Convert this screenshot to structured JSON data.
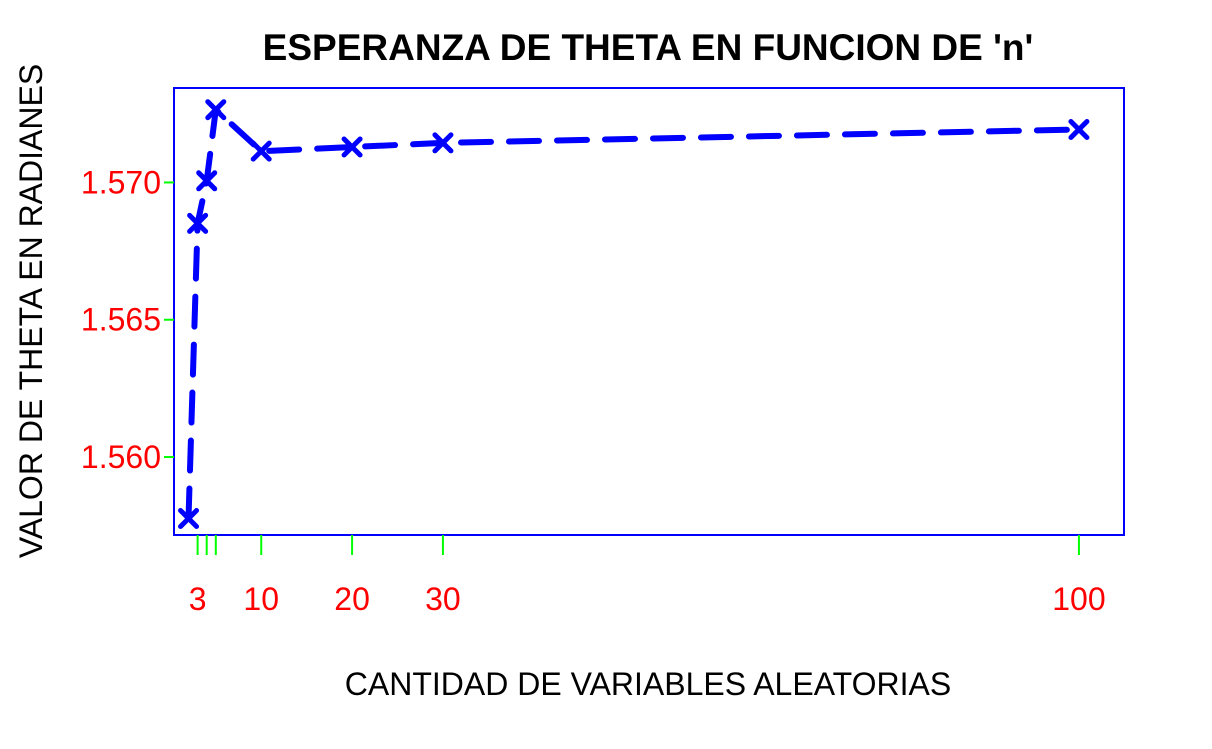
{
  "chart_data": {
    "type": "line",
    "title": "ESPERANZA DE THETA EN FUNCION DE 'n'",
    "xlabel": "CANTIDAD DE VARIABLES ALEATORIAS",
    "ylabel": "VALOR DE THETA EN RADIANES",
    "xlim": [
      0.4,
      104.96
    ],
    "ylim": [
      1.55716,
      1.57344
    ],
    "x_ticks": [
      {
        "value": 3,
        "label": "3"
      },
      {
        "value": 4,
        "label": ""
      },
      {
        "value": 5,
        "label": ""
      },
      {
        "value": 10,
        "label": "10"
      },
      {
        "value": 20,
        "label": "20"
      },
      {
        "value": 30,
        "label": "30"
      },
      {
        "value": 100,
        "label": "100"
      }
    ],
    "y_ticks": [
      {
        "value": 1.56,
        "label": "1.560"
      },
      {
        "value": 1.565,
        "label": "1.565"
      },
      {
        "value": 1.57,
        "label": "1.570"
      }
    ],
    "series": [
      {
        "x": [
          2,
          3,
          4,
          5,
          10,
          20,
          30,
          100
        ],
        "y": [
          1.55776,
          1.56851,
          1.57006,
          1.57265,
          1.57114,
          1.57129,
          1.57144,
          1.57193
        ]
      }
    ],
    "grid": false,
    "colors": {
      "line": "#0000ff",
      "marker": "#0000ff",
      "box": "#0000ff",
      "ticks": "#00ff00",
      "tick_labels": "#ff0000",
      "title": "#000000",
      "axis_labels": "#000000"
    }
  }
}
